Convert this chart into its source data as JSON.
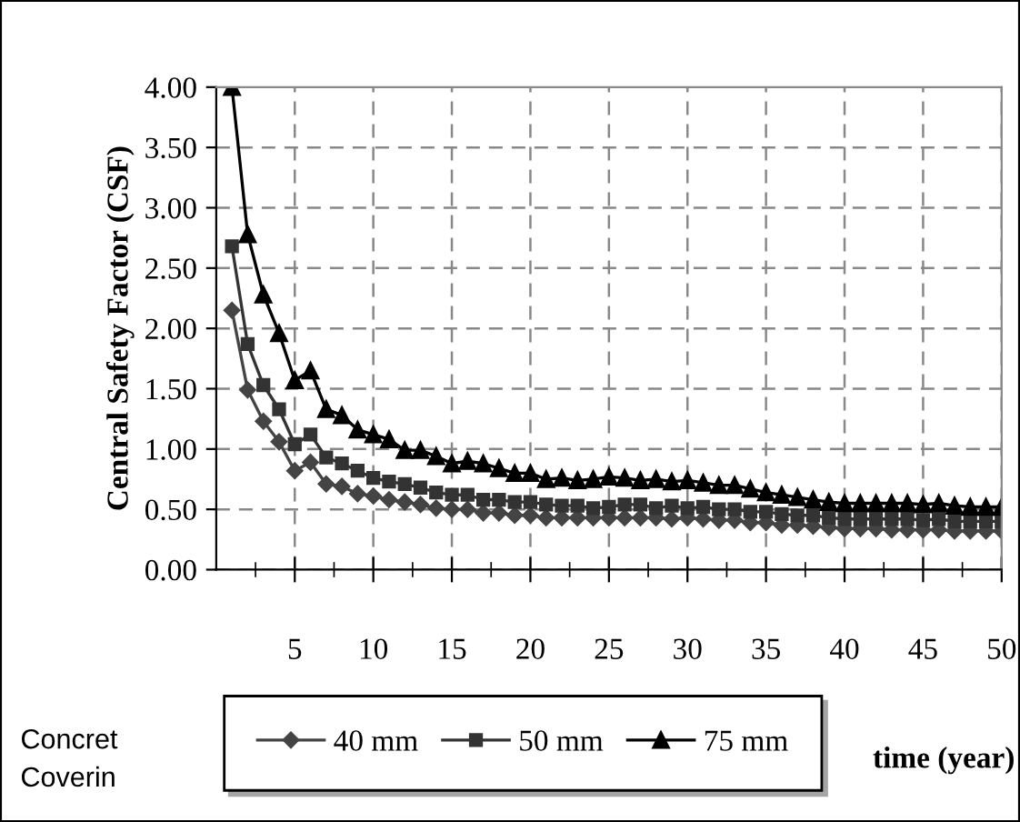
{
  "chart_data": {
    "type": "line",
    "ylabel": "Central Safety Factor (CSF)",
    "xlabel": "time (year)",
    "legend_title": "Concret\nCoverin",
    "x": [
      1,
      2,
      3,
      4,
      5,
      6,
      7,
      8,
      9,
      10,
      11,
      12,
      13,
      14,
      15,
      16,
      17,
      18,
      19,
      20,
      21,
      22,
      23,
      24,
      25,
      26,
      27,
      28,
      29,
      30,
      31,
      32,
      33,
      34,
      35,
      36,
      37,
      38,
      39,
      40,
      41,
      42,
      43,
      44,
      45,
      46,
      47,
      48,
      49,
      50
    ],
    "xlim": [
      0,
      50
    ],
    "xticks": [
      {
        "value": 2.5,
        "label": null
      },
      5,
      {
        "value": 7.5,
        "label": null
      },
      10,
      {
        "value": 12.5,
        "label": null
      },
      15,
      {
        "value": 17.5,
        "label": null
      },
      20,
      {
        "value": 22.5,
        "label": null
      },
      25,
      {
        "value": 27.5,
        "label": null
      },
      30,
      {
        "value": 32.5,
        "label": null
      },
      35,
      {
        "value": 37.5,
        "label": null
      },
      40,
      {
        "value": 42.5,
        "label": null
      },
      45,
      {
        "value": 47.5,
        "label": null
      },
      50
    ],
    "ylim": [
      0,
      4
    ],
    "yticks": [
      {
        "value": 0,
        "label": "0.00"
      },
      {
        "value": 0.5,
        "label": "0.50"
      },
      {
        "value": 1,
        "label": "1.00"
      },
      {
        "value": 1.5,
        "label": "1.50"
      },
      {
        "value": 2,
        "label": "2.00"
      },
      {
        "value": 2.5,
        "label": "2.50"
      },
      {
        "value": 3,
        "label": "3.00"
      },
      {
        "value": 3.5,
        "label": "3.50"
      },
      {
        "value": 4,
        "label": "4.00"
      }
    ],
    "grid": true,
    "legend": "bottom",
    "line_style": "solid",
    "series": [
      {
        "name": "40 mm",
        "color": "#444444",
        "marker": "diamond",
        "values": [
          2.15,
          1.49,
          1.23,
          1.06,
          0.82,
          0.89,
          0.71,
          0.69,
          0.63,
          0.61,
          0.58,
          0.56,
          0.54,
          0.51,
          0.5,
          0.5,
          0.47,
          0.47,
          0.45,
          0.45,
          0.43,
          0.43,
          0.43,
          0.43,
          0.43,
          0.43,
          0.43,
          0.43,
          0.42,
          0.43,
          0.42,
          0.41,
          0.41,
          0.39,
          0.39,
          0.37,
          0.37,
          0.36,
          0.35,
          0.34,
          0.34,
          0.34,
          0.33,
          0.33,
          0.33,
          0.33,
          0.32,
          0.32,
          0.32,
          0.32
        ]
      },
      {
        "name": "50 mm",
        "color": "#333333",
        "marker": "square",
        "values": [
          2.68,
          1.87,
          1.53,
          1.33,
          1.04,
          1.12,
          0.93,
          0.88,
          0.82,
          0.76,
          0.73,
          0.71,
          0.68,
          0.64,
          0.62,
          0.62,
          0.58,
          0.58,
          0.56,
          0.56,
          0.54,
          0.53,
          0.53,
          0.51,
          0.52,
          0.54,
          0.54,
          0.51,
          0.53,
          0.51,
          0.52,
          0.5,
          0.5,
          0.48,
          0.48,
          0.46,
          0.45,
          0.45,
          0.43,
          0.42,
          0.42,
          0.42,
          0.42,
          0.42,
          0.41,
          0.42,
          0.4,
          0.4,
          0.4,
          0.4
        ]
      },
      {
        "name": "75 mm",
        "color": "#000000",
        "marker": "triangle",
        "values": [
          4.0,
          2.78,
          2.28,
          1.96,
          1.57,
          1.65,
          1.33,
          1.28,
          1.16,
          1.12,
          1.08,
          0.99,
          0.99,
          0.94,
          0.88,
          0.9,
          0.88,
          0.84,
          0.8,
          0.8,
          0.75,
          0.76,
          0.74,
          0.75,
          0.77,
          0.76,
          0.74,
          0.75,
          0.73,
          0.74,
          0.72,
          0.7,
          0.7,
          0.67,
          0.64,
          0.62,
          0.6,
          0.58,
          0.56,
          0.55,
          0.55,
          0.55,
          0.55,
          0.55,
          0.54,
          0.55,
          0.53,
          0.52,
          0.52,
          0.52
        ]
      }
    ]
  }
}
